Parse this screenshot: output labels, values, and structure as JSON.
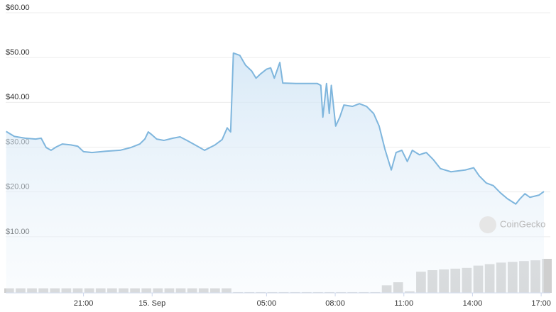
{
  "chart_data": {
    "type": "area",
    "watermark": "CoinGecko",
    "x": [
      17.62,
      17.98,
      18.45,
      18.91,
      19.15,
      19.37,
      19.58,
      19.83,
      20.08,
      20.45,
      20.75,
      21,
      21.37,
      21.98,
      22.6,
      23.06,
      23.46,
      23.68,
      23.83,
      23.98,
      24.2,
      24.51,
      24.91,
      25.22,
      25.52,
      25.98,
      26.29,
      26.75,
      27.06,
      27.28,
      27.43,
      27.55,
      27.83,
      28.08,
      28.35,
      28.54,
      28.75,
      29,
      29.18,
      29.34,
      29.58,
      29.71,
      30.29,
      31.22,
      31.37,
      31.46,
      31.62,
      31.74,
      31.83,
      32.02,
      32.2,
      32.38,
      32.75,
      33.06,
      33.37,
      33.68,
      33.92,
      34.17,
      34.45,
      34.66,
      34.91,
      35.15,
      35.37,
      35.68,
      35.98,
      36.29,
      36.6,
      37.06,
      37.68,
      38.05,
      38.29,
      38.6,
      38.91,
      39.22,
      39.52,
      39.89,
      40.08,
      40.29,
      40.51,
      40.91,
      41.12
    ],
    "series": [
      {
        "color": "#7fb6dd",
        "values": [
          33.5,
          32.4,
          32,
          31.8,
          32,
          29.9,
          29.3,
          30.1,
          30.7,
          30.5,
          30.2,
          29,
          28.8,
          29.1,
          29.3,
          29.9,
          30.7,
          31.8,
          33.4,
          32.8,
          31.8,
          31.5,
          32,
          32.3,
          31.5,
          30.2,
          29.3,
          30.5,
          31.7,
          34.3,
          33.4,
          51,
          50.5,
          48.3,
          47,
          45.4,
          46.4,
          47.4,
          47.7,
          45.4,
          48.9,
          44.3,
          44.2,
          44.2,
          43.8,
          36.7,
          44.2,
          37.5,
          43.8,
          34.7,
          36.7,
          39.4,
          39.1,
          39.7,
          39.1,
          37.5,
          34.7,
          29.6,
          24.9,
          28.8,
          29.3,
          26.8,
          29.3,
          28.3,
          28.8,
          27.2,
          25.2,
          24.5,
          24.9,
          25.4,
          23.6,
          22,
          21.4,
          19.8,
          18.5,
          17.3,
          18.5,
          19.6,
          18.8,
          19.3,
          20.1
        ]
      }
    ],
    "volume": {
      "color": "#cfcfcf",
      "x": [
        17.75,
        18.25,
        18.75,
        19.25,
        19.75,
        20.25,
        20.75,
        21.25,
        21.75,
        22.25,
        22.75,
        23.25,
        23.75,
        24.25,
        24.75,
        25.25,
        25.75,
        26.25,
        26.75,
        27.25,
        27.75,
        28.25,
        28.75,
        29.25,
        29.75,
        30.25,
        30.75,
        31.25,
        31.75,
        32.25,
        32.75,
        33.25,
        33.75,
        34.25,
        34.75,
        35.25,
        35.75,
        36.25,
        36.75,
        37.25,
        37.75,
        38.25,
        38.75,
        39.25,
        39.75,
        40.25,
        40.75,
        41.25
      ],
      "values": [
        6,
        6,
        6,
        6,
        6,
        6,
        6,
        6,
        6,
        6,
        6,
        6,
        6,
        6,
        6,
        6,
        6,
        6,
        6,
        6,
        1,
        1,
        1,
        1,
        1,
        1,
        1,
        1,
        1,
        1,
        1,
        1,
        1,
        10,
        14,
        2,
        28,
        30,
        31,
        32,
        33,
        36,
        38,
        40,
        41,
        42,
        43,
        45
      ]
    },
    "xlim": [
      17.6,
      41.4
    ],
    "xticks": [
      {
        "value": 21,
        "label": "21:00"
      },
      {
        "value": 24,
        "label": "15. Sep"
      },
      {
        "value": 29,
        "label": "05:00"
      },
      {
        "value": 32,
        "label": "08:00"
      },
      {
        "value": 35,
        "label": "11:00"
      },
      {
        "value": 38,
        "label": "14:00"
      },
      {
        "value": 41,
        "label": "17:00"
      }
    ],
    "ylim": [
      -2.53,
      62.85
    ],
    "yticks": [
      {
        "value": 10,
        "label": "$10.00"
      },
      {
        "value": 20,
        "label": "$20.00"
      },
      {
        "value": 30,
        "label": "$30.00"
      },
      {
        "value": 40,
        "label": "$40.00"
      },
      {
        "value": 50,
        "label": "$50.00"
      },
      {
        "value": 60,
        "label": "$60.00"
      }
    ],
    "grid": true
  }
}
